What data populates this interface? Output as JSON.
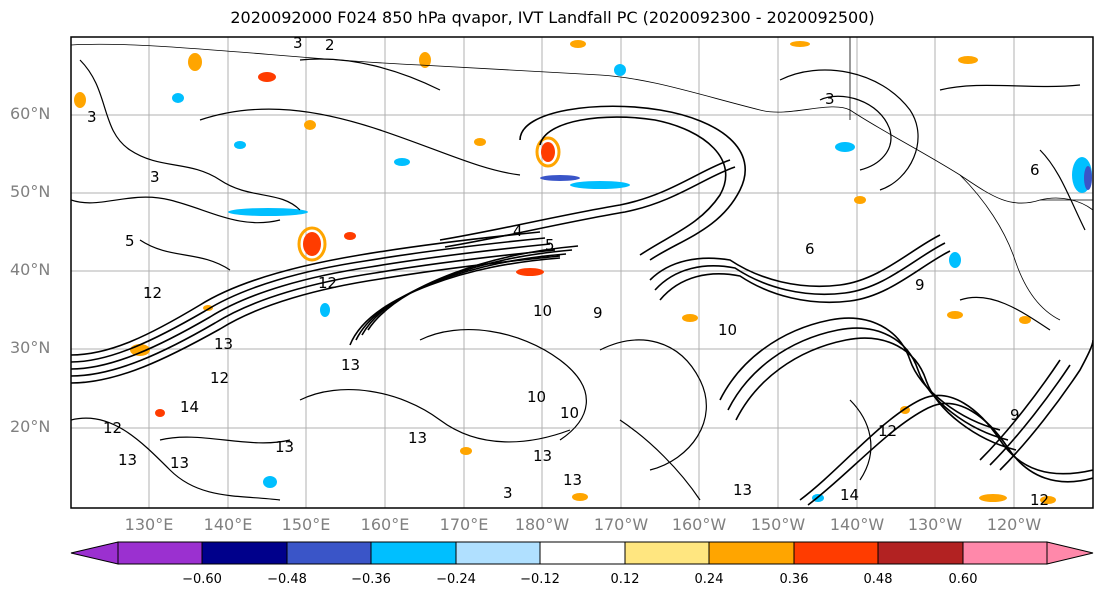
{
  "title": "2020092000 F024 850 hPa qvapor, IVT Landfall PC (2020092300 - 2020092500)",
  "lat_labels": [
    "60°N",
    "50°N",
    "40°N",
    "30°N",
    "20°N"
  ],
  "lon_labels": [
    "130°E",
    "140°E",
    "150°E",
    "160°E",
    "170°E",
    "180°W",
    "170°W",
    "160°W",
    "150°W",
    "140°W",
    "130°W",
    "120°W"
  ],
  "colorbar": {
    "ticks": [
      "−0.60",
      "−0.48",
      "−0.36",
      "−0.24",
      "−0.12",
      "0.12",
      "0.24",
      "0.36",
      "0.48",
      "0.60"
    ],
    "colors": [
      "#9b30d0",
      "#00008b",
      "#3a55c8",
      "#00bfff",
      "#b0e0ff",
      "#ffffff",
      "#ffe680",
      "#ffa500",
      "#ff3c00",
      "#b22222",
      "#ff88aa"
    ]
  },
  "contour_labels": [
    "3",
    "2",
    "3",
    "3",
    "5",
    "4",
    "5",
    "3",
    "6",
    "9",
    "12",
    "12",
    "10",
    "9",
    "13",
    "13",
    "12",
    "14",
    "12",
    "13",
    "13",
    "10",
    "10",
    "13",
    "13",
    "13",
    "3",
    "13",
    "10",
    "14",
    "12",
    "13",
    "12",
    "9",
    "6"
  ]
}
